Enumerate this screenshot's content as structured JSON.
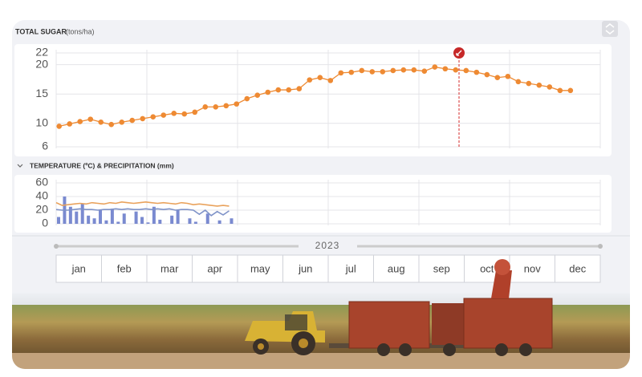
{
  "chart_data": [
    {
      "type": "line",
      "title": "TOTAL SUGAR",
      "unit": "(tons/ha)",
      "color": "#ee8a33",
      "x": [
        2,
        9,
        16,
        23,
        30,
        37,
        44,
        51,
        58,
        65,
        72,
        79,
        86,
        93,
        100,
        107,
        114,
        121,
        128,
        135,
        142,
        149,
        156,
        163,
        170,
        177,
        184,
        191,
        198,
        205,
        212,
        219,
        226,
        233,
        240,
        247,
        254,
        261,
        268,
        275,
        282,
        289,
        296,
        303,
        310,
        317,
        324,
        331,
        338,
        345
      ],
      "values": [
        9.5,
        9.9,
        10.3,
        10.7,
        10.2,
        9.8,
        10.2,
        10.5,
        10.8,
        11.1,
        11.4,
        11.7,
        11.6,
        11.9,
        12.8,
        12.8,
        13.0,
        13.3,
        14.2,
        14.8,
        15.3,
        15.7,
        15.7,
        15.9,
        17.4,
        17.8,
        17.3,
        18.6,
        18.7,
        19.0,
        18.8,
        18.8,
        19.0,
        19.1,
        19.1,
        18.9,
        19.6,
        19.3,
        19.1,
        19.0,
        18.7,
        18.3,
        17.8,
        18.0,
        17.1,
        16.8,
        16.5,
        16.2,
        15.6,
        15.6
      ],
      "xlim": [
        0,
        365
      ],
      "ylim": [
        6,
        22
      ],
      "yticks": [
        6,
        10,
        15,
        20,
        22
      ],
      "grid": true
    },
    {
      "type": "combo",
      "title": "TEMPERATURE (ºC) & PRECIPITATION (mm)",
      "x": [
        0,
        4,
        8,
        12,
        16,
        20,
        24,
        28,
        32,
        36,
        40,
        44,
        48,
        52,
        56,
        60,
        64,
        68,
        72,
        76,
        80,
        84,
        88,
        92,
        96,
        100,
        104,
        108,
        112,
        116
      ],
      "xlim": [
        0,
        365
      ],
      "ylim": [
        0,
        60
      ],
      "yticks": [
        0,
        20,
        40,
        60
      ],
      "grid": true,
      "series": [
        {
          "kind": "bar",
          "color": "#7a8ad0",
          "values": [
            10,
            40,
            25,
            18,
            30,
            12,
            8,
            20,
            5,
            22,
            3,
            15,
            0,
            18,
            10,
            2,
            25,
            6,
            0,
            12,
            20,
            0,
            8,
            3,
            0,
            15,
            0,
            5,
            0,
            8
          ]
        },
        {
          "kind": "line",
          "color": "#e9a25c",
          "values": [
            31,
            27,
            28,
            29,
            30,
            29,
            31,
            30,
            29,
            31,
            30,
            32,
            31,
            30,
            31,
            32,
            31,
            30,
            31,
            30,
            29,
            31,
            30,
            28,
            29,
            28,
            27,
            26,
            27,
            26
          ]
        },
        {
          "kind": "line",
          "color": "#7f93c8",
          "values": [
            21,
            20,
            20,
            21,
            22,
            21,
            21,
            20,
            21,
            21,
            22,
            21,
            22,
            21,
            21,
            22,
            21,
            22,
            21,
            22,
            20,
            21,
            21,
            20,
            14,
            20,
            12,
            18,
            13,
            19
          ]
        }
      ]
    }
  ],
  "timeline": {
    "year": "2023",
    "months": [
      "jan",
      "feb",
      "mar",
      "apr",
      "may",
      "jun",
      "jul",
      "aug",
      "sep",
      "oct",
      "nov",
      "dec"
    ]
  }
}
